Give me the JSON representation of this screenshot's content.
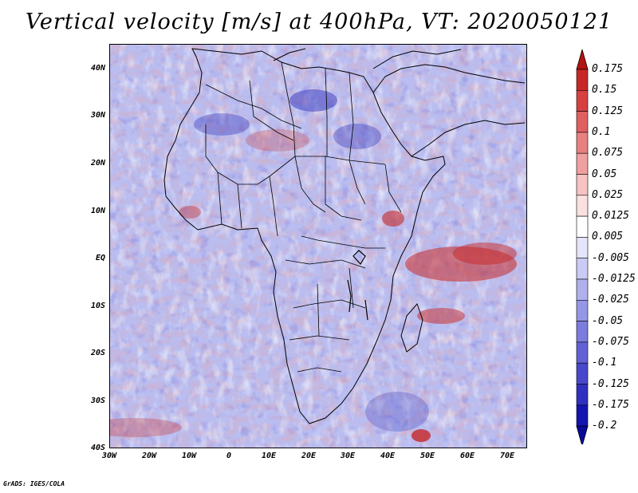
{
  "title": "Vertical velocity [m/s] at 400hPa, VT: 2020050121",
  "credit": "GrADS: IGES/COLA",
  "lat_labels": [
    "40N",
    "30N",
    "20N",
    "10N",
    "EQ",
    "10S",
    "20S",
    "30S",
    "40S"
  ],
  "lon_labels": [
    "30W",
    "20W",
    "10W",
    "0",
    "10E",
    "20E",
    "30E",
    "40E",
    "50E",
    "60E",
    "70E"
  ],
  "colorbar": {
    "labels": [
      "0.175",
      "0.15",
      "0.125",
      "0.1",
      "0.075",
      "0.05",
      "0.025",
      "0.0125",
      "0.005",
      "-0.005",
      "-0.0125",
      "-0.025",
      "-0.05",
      "-0.075",
      "-0.1",
      "-0.125",
      "-0.175",
      "-0.2"
    ],
    "colors": [
      "#b41414",
      "#c62828",
      "#d64040",
      "#e06060",
      "#e88080",
      "#f0a0a0",
      "#f6c2c2",
      "#fbe0e0",
      "#ffffff",
      "#e4e4fb",
      "#cacaf5",
      "#b0b0ee",
      "#9696e6",
      "#7c7cde",
      "#6262d6",
      "#4848cc",
      "#3030c0",
      "#1414b0",
      "#0a0a9a"
    ]
  },
  "map": {
    "ocean_color": "#b9bdf0",
    "boundary_color": "#000000"
  }
}
